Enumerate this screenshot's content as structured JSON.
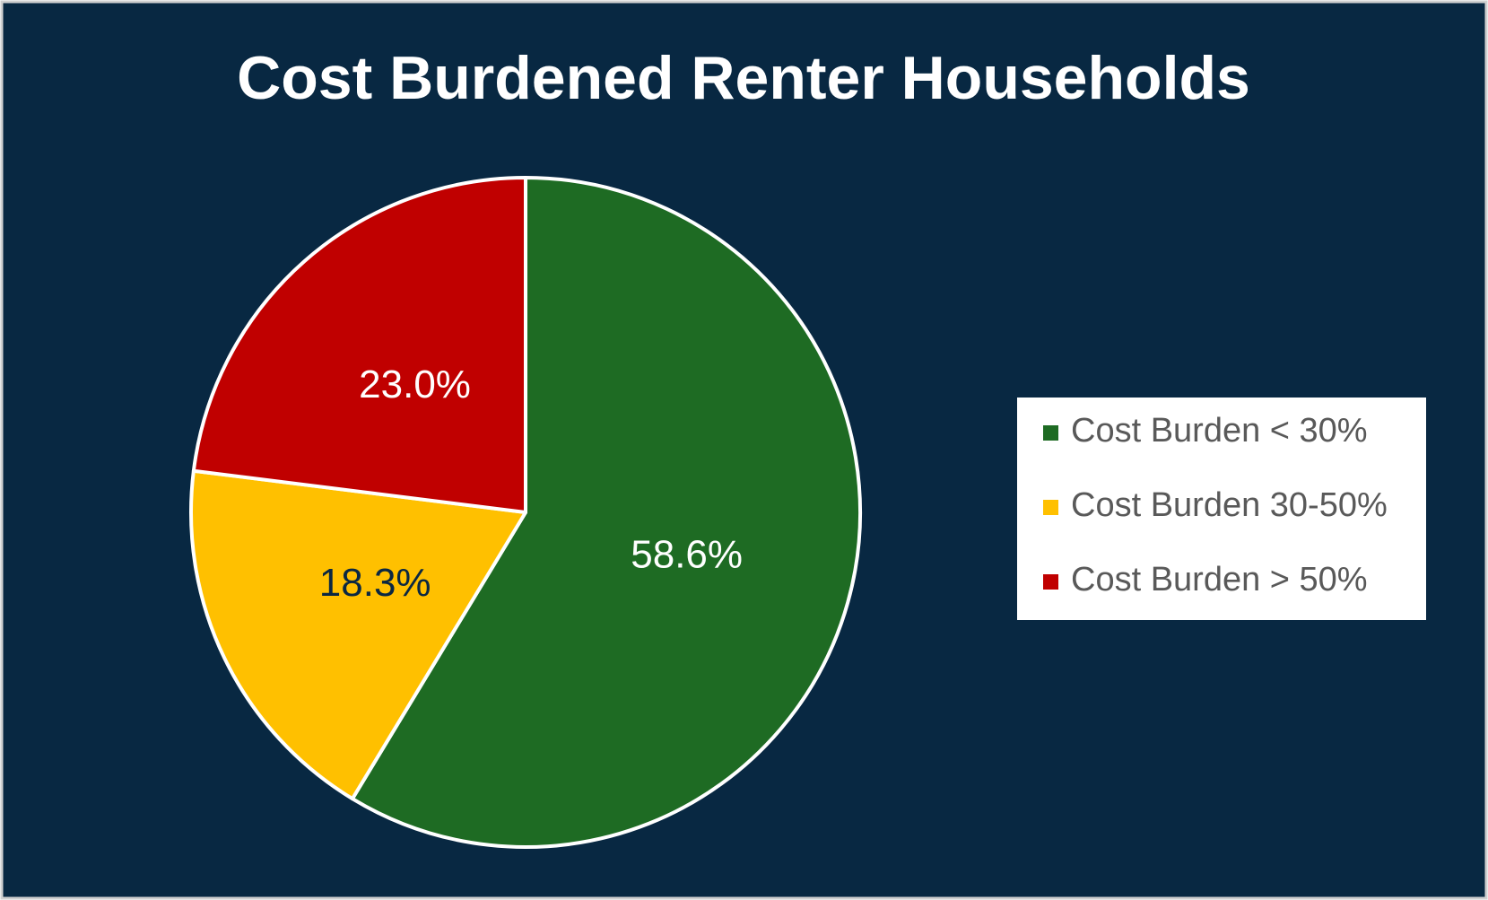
{
  "chart_data": {
    "type": "pie",
    "title": "Cost Burdened Renter Households",
    "categories": [
      "Cost Burden < 30%",
      "Cost Burden 30-50%",
      "Cost Burden > 50%"
    ],
    "values": [
      58.6,
      18.3,
      23.0
    ],
    "value_labels": [
      "58.6%",
      "18.3%",
      "23.0%"
    ],
    "colors": [
      "#1e6b23",
      "#ffc000",
      "#c00000"
    ],
    "label_colors": [
      "#ffffff",
      "#0a2742",
      "#ffffff"
    ],
    "legend": "right"
  }
}
